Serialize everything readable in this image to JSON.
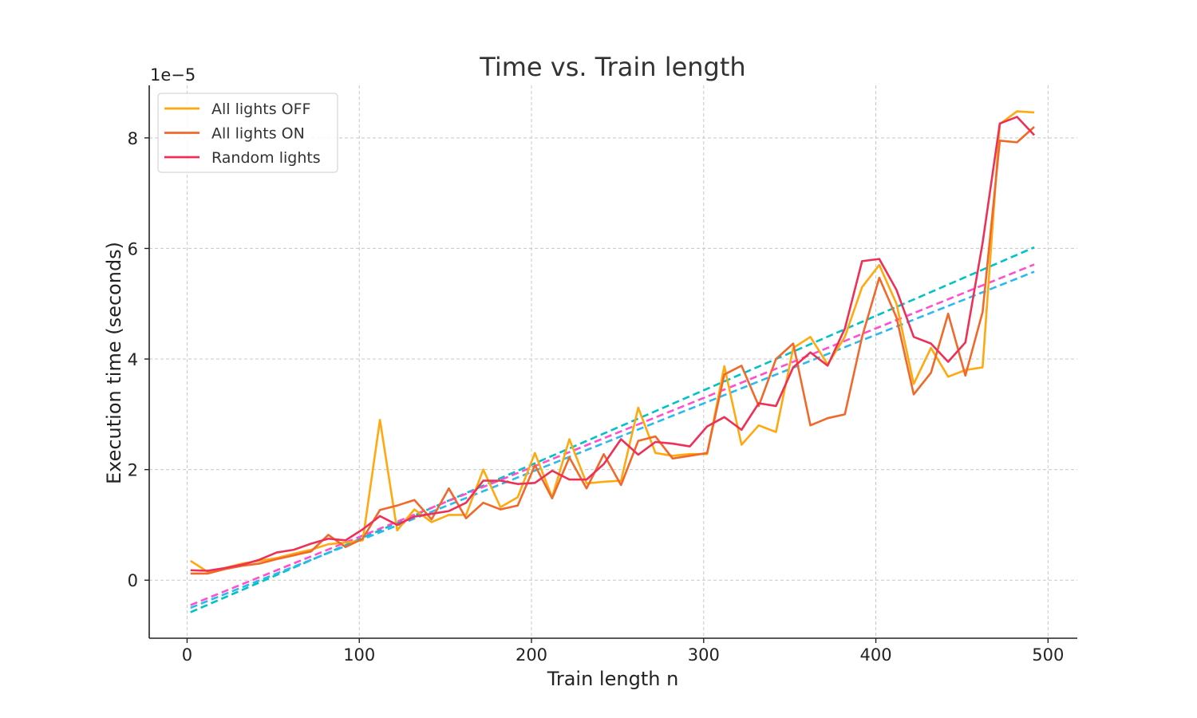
{
  "chart_data": {
    "type": "line",
    "title": "Time vs. Train length",
    "xlabel": "Train length n",
    "ylabel": "Execution time (seconds)",
    "y_offset_label": "1e−5",
    "xlim": [
      -22,
      517
    ],
    "ylim": [
      -1.05,
      8.95
    ],
    "y_scale_note": "values in units of 1e-5 seconds",
    "xticks": [
      0,
      100,
      200,
      300,
      400,
      500
    ],
    "yticks": [
      0,
      2,
      4,
      6,
      8
    ],
    "grid": true,
    "legend_position": "top-left",
    "x": [
      2,
      12,
      22,
      32,
      42,
      52,
      62,
      72,
      82,
      92,
      102,
      112,
      122,
      132,
      142,
      152,
      162,
      172,
      182,
      192,
      202,
      212,
      222,
      232,
      242,
      252,
      262,
      272,
      282,
      292,
      302,
      312,
      322,
      332,
      342,
      352,
      362,
      372,
      382,
      392,
      402,
      412,
      422,
      432,
      442,
      452,
      462,
      472,
      482,
      492
    ],
    "series": [
      {
        "name": "All lights OFF",
        "color": "#ffa90e",
        "values": [
          0.35,
          0.15,
          0.22,
          0.3,
          0.35,
          0.4,
          0.48,
          0.55,
          0.65,
          0.68,
          0.72,
          2.9,
          0.9,
          1.28,
          1.05,
          1.18,
          1.18,
          2.0,
          1.32,
          1.5,
          2.3,
          1.5,
          2.55,
          1.75,
          1.78,
          1.8,
          3.12,
          2.3,
          2.25,
          2.28,
          2.28,
          3.87,
          2.45,
          2.8,
          2.68,
          4.2,
          4.4,
          3.9,
          4.4,
          5.3,
          5.7,
          5.0,
          3.55,
          4.2,
          3.68,
          3.8,
          3.85,
          8.25,
          8.48,
          8.46
        ]
      },
      {
        "name": "All lights ON",
        "color": "#f0692a",
        "values": [
          0.12,
          0.12,
          0.2,
          0.26,
          0.3,
          0.38,
          0.45,
          0.52,
          0.82,
          0.6,
          0.75,
          1.27,
          1.35,
          1.45,
          1.1,
          1.66,
          1.12,
          1.4,
          1.28,
          1.35,
          2.08,
          1.48,
          2.22,
          1.66,
          2.28,
          1.72,
          2.52,
          2.6,
          2.2,
          2.25,
          2.3,
          3.72,
          3.88,
          3.15,
          4.0,
          4.28,
          2.8,
          2.93,
          3.0,
          4.4,
          5.47,
          4.75,
          3.36,
          3.75,
          4.82,
          3.7,
          4.85,
          7.95,
          7.92,
          8.2
        ]
      },
      {
        "name": "Random lights",
        "color": "#ee3056",
        "values": [
          0.18,
          0.17,
          0.22,
          0.28,
          0.37,
          0.5,
          0.55,
          0.66,
          0.75,
          0.72,
          0.92,
          1.16,
          1.0,
          1.15,
          1.2,
          1.25,
          1.4,
          1.8,
          1.8,
          1.74,
          1.76,
          1.98,
          1.82,
          1.82,
          2.1,
          2.55,
          2.27,
          2.5,
          2.47,
          2.42,
          2.78,
          2.95,
          2.72,
          3.2,
          3.15,
          3.85,
          4.12,
          3.88,
          4.55,
          5.77,
          5.81,
          5.25,
          4.4,
          4.28,
          3.95,
          4.3,
          6.1,
          8.26,
          8.38,
          8.05
        ]
      }
    ],
    "trend_lines": [
      {
        "color": "#00c2c7",
        "style": "dashed",
        "x": [
          2,
          492
        ],
        "values": [
          -0.58,
          6.02
        ]
      },
      {
        "color": "#ff4fcf",
        "style": "dashed",
        "x": [
          2,
          492
        ],
        "values": [
          -0.45,
          5.71
        ]
      },
      {
        "color": "#2cb8f0",
        "style": "dashed",
        "x": [
          2,
          492
        ],
        "values": [
          -0.5,
          5.58
        ]
      }
    ]
  }
}
